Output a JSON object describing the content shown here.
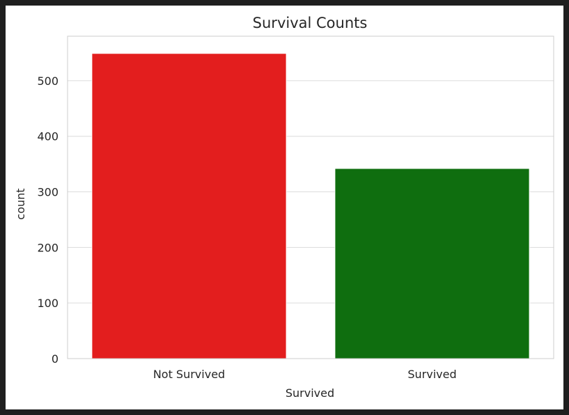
{
  "chart_data": {
    "type": "bar",
    "title": "Survival Counts",
    "xlabel": "Survived",
    "ylabel": "count",
    "categories": [
      "Not Survived",
      "Survived"
    ],
    "values": [
      549,
      342
    ],
    "colors": [
      "#e31e1e",
      "#0f6e0f"
    ],
    "ylim": [
      0,
      580
    ],
    "yticks": [
      0,
      100,
      200,
      300,
      400,
      500
    ],
    "grid": true,
    "legend": "none"
  }
}
